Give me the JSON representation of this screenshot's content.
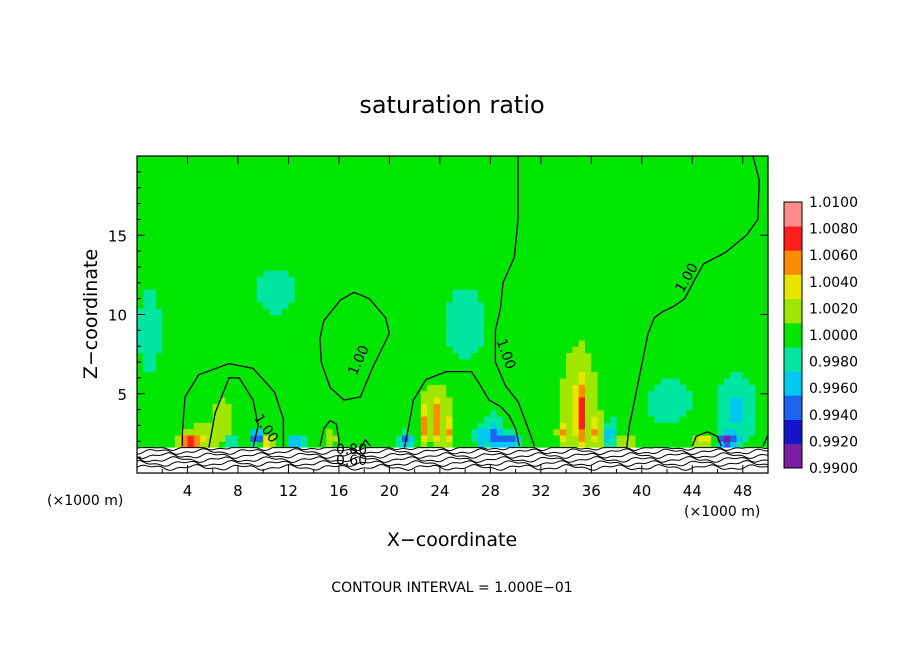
{
  "chart_data": {
    "type": "heatmap",
    "title": "saturation ratio",
    "xlabel": "X−coordinate",
    "ylabel": "Z−coordinate",
    "x_unit_left": "(×1000 m)",
    "x_unit_right": "(×1000 m)",
    "footer": "CONTOUR INTERVAL = 1.000E−01",
    "xlim": [
      0,
      50
    ],
    "ylim": [
      0,
      20
    ],
    "x_ticks": [
      4,
      8,
      12,
      16,
      20,
      24,
      28,
      32,
      36,
      40,
      44,
      48
    ],
    "x_tick_labels": [
      "4",
      "8",
      "12",
      "16",
      "20",
      "24",
      "28",
      "32",
      "36",
      "40",
      "44",
      "48"
    ],
    "y_ticks": [
      5,
      10,
      15
    ],
    "y_tick_labels": [
      "5",
      "10",
      "15"
    ],
    "colorbar": {
      "levels": [
        0.99,
        0.992,
        0.994,
        0.996,
        0.998,
        1.0,
        1.002,
        1.004,
        1.006,
        1.008,
        1.01
      ],
      "labels": [
        "0.9900",
        "0.9920",
        "0.9940",
        "0.9960",
        "0.9980",
        "1.0000",
        "1.0020",
        "1.0040",
        "1.0060",
        "1.0080",
        "1.0100"
      ],
      "colors": [
        "#7a1fa2",
        "#1414c8",
        "#1e64f0",
        "#00c8f0",
        "#00e6a0",
        "#00e600",
        "#a0e600",
        "#e6e600",
        "#ff8c00",
        "#ff1e1e",
        "#ff8c8c"
      ]
    },
    "contour_labels": [
      {
        "text": "1.00",
        "x": 10.2,
        "y": 2.8,
        "angle": 55
      },
      {
        "text": "1.00",
        "x": 17.6,
        "y": 7.1,
        "angle": -65
      },
      {
        "text": "1.00",
        "x": 29.2,
        "y": 7.5,
        "angle": 70
      },
      {
        "text": "1.00",
        "x": 43.6,
        "y": 12.3,
        "angle": -60
      },
      {
        "text": "0.80",
        "x": 17.0,
        "y": 1.45,
        "angle": 0
      },
      {
        "text": "0.60",
        "x": 17.0,
        "y": 0.75,
        "angle": 0
      }
    ],
    "contour_1_00": [
      [
        [
          3.6,
          1.7
        ],
        [
          3.6,
          2.6
        ],
        [
          3.8,
          4.8
        ],
        [
          4.9,
          6.2
        ],
        [
          7.3,
          6.9
        ],
        [
          9.2,
          6.6
        ],
        [
          10.9,
          5.1
        ],
        [
          11.6,
          3.4
        ],
        [
          11.6,
          1.6
        ]
      ],
      [
        [
          5.7,
          1.6
        ],
        [
          6.2,
          3.8
        ],
        [
          7.3,
          6.0
        ],
        [
          8.1,
          6.0
        ],
        [
          9.2,
          4.6
        ],
        [
          9.6,
          3.0
        ],
        [
          9.2,
          1.6
        ]
      ],
      [
        [
          14.5,
          8.5
        ],
        [
          14.8,
          9.6
        ],
        [
          16.1,
          10.9
        ],
        [
          17.2,
          11.4
        ],
        [
          18.4,
          11.0
        ],
        [
          19.7,
          9.8
        ],
        [
          20.0,
          8.8
        ],
        [
          18.7,
          6.7
        ],
        [
          17.7,
          4.8
        ],
        [
          16.4,
          4.6
        ],
        [
          15.3,
          5.4
        ],
        [
          14.6,
          7.0
        ],
        [
          14.5,
          8.5
        ]
      ],
      [
        [
          14.5,
          1.7
        ],
        [
          14.8,
          2.8
        ],
        [
          15.3,
          3.3
        ],
        [
          15.8,
          3.1
        ],
        [
          16.0,
          2.1
        ],
        [
          16.0,
          1.7
        ]
      ],
      [
        [
          17.7,
          1.5
        ],
        [
          18.1,
          2.1
        ],
        [
          18.5,
          1.7
        ]
      ],
      [
        [
          21.2,
          1.6
        ],
        [
          21.5,
          2.8
        ],
        [
          21.9,
          4.6
        ],
        [
          22.9,
          5.9
        ],
        [
          24.5,
          6.4
        ],
        [
          26.5,
          6.4
        ],
        [
          27.0,
          5.8
        ],
        [
          27.9,
          4.6
        ],
        [
          28.8,
          4.2
        ],
        [
          29.5,
          3.6
        ],
        [
          30.0,
          2.8
        ],
        [
          30.3,
          1.7
        ]
      ],
      [
        [
          30.2,
          20.0
        ],
        [
          30.2,
          16.0
        ],
        [
          29.9,
          13.6
        ],
        [
          29.0,
          12.0
        ],
        [
          28.8,
          10.4
        ],
        [
          28.4,
          9.0
        ],
        [
          28.4,
          7.0
        ],
        [
          29.2,
          5.5
        ],
        [
          30.2,
          4.5
        ],
        [
          31.0,
          2.8
        ],
        [
          31.5,
          1.7
        ]
      ],
      [
        [
          38.8,
          1.6
        ],
        [
          39.0,
          2.9
        ],
        [
          40.5,
          8.8
        ],
        [
          41.0,
          9.8
        ],
        [
          41.7,
          10.2
        ],
        [
          42.5,
          10.5
        ],
        [
          43.4,
          11.0
        ],
        [
          44.2,
          12.2
        ],
        [
          44.9,
          13.2
        ],
        [
          46.6,
          13.9
        ],
        [
          48.3,
          15.0
        ],
        [
          49.2,
          16.0
        ],
        [
          49.3,
          18.5
        ],
        [
          48.8,
          20.0
        ]
      ],
      [
        [
          44.0,
          1.7
        ],
        [
          44.3,
          2.3
        ],
        [
          45.2,
          2.6
        ],
        [
          46.0,
          2.3
        ],
        [
          46.3,
          1.7
        ]
      ],
      [
        [
          49.6,
          1.7
        ],
        [
          50.0,
          2.4
        ]
      ]
    ],
    "base_contour_rows": [
      0.35,
      0.6,
      0.85,
      1.1,
      1.35,
      1.6
    ],
    "surface_height": 1.6,
    "hotspots": [
      {
        "x": 4.1,
        "z": 2.0,
        "sx": 0.9,
        "sz": 0.4,
        "v": 1.01
      },
      {
        "x": 5.2,
        "z": 2.4,
        "sx": 1.1,
        "sz": 0.8,
        "v": 1.0035
      },
      {
        "x": 6.8,
        "z": 3.2,
        "sx": 0.9,
        "sz": 2.0,
        "v": 1.003
      },
      {
        "x": 9.5,
        "z": 2.3,
        "sx": 0.5,
        "sz": 0.4,
        "v": 0.993
      },
      {
        "x": 10.4,
        "z": 2.0,
        "sx": 0.4,
        "sz": 0.3,
        "v": 1.0095
      },
      {
        "x": 7.5,
        "z": 2.0,
        "sx": 0.6,
        "sz": 0.3,
        "v": 0.995
      },
      {
        "x": 12.6,
        "z": 2.0,
        "sx": 0.7,
        "sz": 0.4,
        "v": 0.9955
      },
      {
        "x": 15.3,
        "z": 2.2,
        "sx": 0.6,
        "sz": 0.5,
        "v": 1.003
      },
      {
        "x": 17.2,
        "z": 7.5,
        "sx": 1.6,
        "sz": 2.6,
        "v": 1.0006
      },
      {
        "x": 22.8,
        "z": 3.0,
        "sx": 0.35,
        "sz": 1.3,
        "v": 1.0065
      },
      {
        "x": 23.8,
        "z": 3.2,
        "sx": 0.35,
        "sz": 1.5,
        "v": 1.007
      },
      {
        "x": 24.7,
        "z": 2.7,
        "sx": 0.35,
        "sz": 1.1,
        "v": 1.006
      },
      {
        "x": 23.8,
        "z": 4.5,
        "sx": 1.6,
        "sz": 1.6,
        "v": 1.0025
      },
      {
        "x": 21.4,
        "z": 2.1,
        "sx": 0.6,
        "sz": 0.4,
        "v": 0.995
      },
      {
        "x": 27.3,
        "z": 2.3,
        "sx": 0.5,
        "sz": 0.7,
        "v": 0.996
      },
      {
        "x": 28.3,
        "z": 2.6,
        "sx": 0.5,
        "sz": 1.0,
        "v": 0.9955
      },
      {
        "x": 29.5,
        "z": 2.1,
        "sx": 0.8,
        "sz": 0.4,
        "v": 0.993
      },
      {
        "x": 26.0,
        "z": 9.5,
        "sx": 2.0,
        "sz": 3.0,
        "v": 0.9992
      },
      {
        "x": 31.5,
        "z": 2.1,
        "sx": 0.6,
        "sz": 0.5,
        "v": 1.0015
      },
      {
        "x": 33.8,
        "z": 2.6,
        "sx": 0.4,
        "sz": 0.9,
        "v": 1.006
      },
      {
        "x": 35.2,
        "z": 3.6,
        "sx": 0.45,
        "sz": 2.2,
        "v": 1.008
      },
      {
        "x": 35.0,
        "z": 5.5,
        "sx": 1.6,
        "sz": 3.5,
        "v": 1.003
      },
      {
        "x": 35.0,
        "z": 11.0,
        "sx": 3.0,
        "sz": 4.5,
        "v": 1.0008
      },
      {
        "x": 36.4,
        "z": 2.6,
        "sx": 0.4,
        "sz": 1.0,
        "v": 1.0065
      },
      {
        "x": 38.2,
        "z": 2.0,
        "sx": 0.4,
        "sz": 0.3,
        "v": 1.006
      },
      {
        "x": 39.0,
        "z": 2.0,
        "sx": 0.3,
        "sz": 0.3,
        "v": 1.0065
      },
      {
        "x": 37.5,
        "z": 2.5,
        "sx": 0.6,
        "sz": 0.8,
        "v": 0.996
      },
      {
        "x": 39.5,
        "z": 6.0,
        "sx": 1.8,
        "sz": 2.5,
        "v": 1.0014
      },
      {
        "x": 45.0,
        "z": 2.1,
        "sx": 0.8,
        "sz": 0.4,
        "v": 1.006
      },
      {
        "x": 46.7,
        "z": 2.1,
        "sx": 0.8,
        "sz": 0.4,
        "v": 0.992
      },
      {
        "x": 47.5,
        "z": 4.0,
        "sx": 1.5,
        "sz": 2.0,
        "v": 0.9975
      },
      {
        "x": 1.0,
        "z": 9.0,
        "sx": 1.0,
        "sz": 3.0,
        "v": 0.9988
      },
      {
        "x": 11.0,
        "z": 11.5,
        "sx": 2.0,
        "sz": 2.0,
        "v": 0.9993
      },
      {
        "x": 42.0,
        "z": 4.5,
        "sx": 2.0,
        "sz": 1.5,
        "v": 0.9985
      }
    ]
  }
}
